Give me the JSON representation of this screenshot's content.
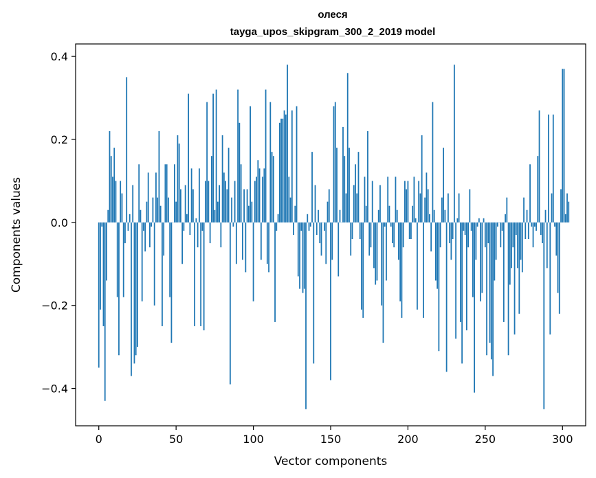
{
  "chart_data": {
    "type": "bar",
    "title": "олеся",
    "subtitle": "tayga_upos_skipgram_300_2_2019 model",
    "xlabel": "Vector components",
    "ylabel": "Components values",
    "xlim": [
      -15,
      315
    ],
    "ylim": [
      -0.49,
      0.43
    ],
    "x_ticks": [
      0,
      50,
      100,
      150,
      200,
      250,
      300
    ],
    "x_tick_labels": [
      "0",
      "50",
      "100",
      "150",
      "200",
      "250",
      "300"
    ],
    "y_ticks": [
      -0.4,
      -0.2,
      0.0,
      0.2,
      0.4
    ],
    "y_tick_labels": [
      "−0.4",
      "−0.2",
      "0.0",
      "0.2",
      "0.4"
    ],
    "bar_color": "#1f77b4",
    "values": [
      -0.35,
      -0.21,
      -0.01,
      -0.25,
      -0.43,
      -0.14,
      0.03,
      0.22,
      0.16,
      0.11,
      0.18,
      0.1,
      -0.18,
      -0.32,
      0.1,
      0.07,
      -0.18,
      -0.05,
      0.35,
      -0.02,
      0.02,
      -0.37,
      0.09,
      -0.34,
      -0.32,
      -0.3,
      0.14,
      0.03,
      -0.19,
      -0.02,
      -0.07,
      0.05,
      0.12,
      -0.06,
      -0.01,
      0.06,
      -0.2,
      0.12,
      0.06,
      0.22,
      0.04,
      -0.25,
      -0.08,
      0.14,
      0.14,
      0.06,
      -0.18,
      -0.29,
      0.0,
      0.14,
      0.05,
      0.21,
      0.19,
      0.08,
      -0.1,
      -0.02,
      0.09,
      0.02,
      0.31,
      -0.03,
      0.13,
      0.08,
      -0.25,
      0.01,
      -0.06,
      0.13,
      -0.25,
      -0.02,
      -0.26,
      0.1,
      0.29,
      0.1,
      -0.05,
      0.16,
      0.31,
      0.03,
      0.32,
      0.05,
      0.09,
      -0.06,
      0.21,
      0.12,
      0.1,
      0.08,
      0.18,
      -0.39,
      0.06,
      -0.01,
      0.1,
      -0.1,
      0.32,
      0.24,
      0.14,
      -0.09,
      0.08,
      -0.12,
      0.08,
      0.04,
      0.28,
      0.05,
      -0.19,
      0.1,
      0.11,
      0.15,
      0.13,
      -0.09,
      0.11,
      0.13,
      0.32,
      -0.1,
      -0.12,
      0.29,
      0.17,
      0.16,
      -0.24,
      -0.02,
      0.02,
      0.24,
      0.25,
      0.25,
      0.27,
      0.26,
      0.38,
      0.11,
      0.06,
      0.27,
      -0.03,
      0.04,
      0.28,
      -0.13,
      -0.16,
      -0.02,
      -0.17,
      -0.16,
      -0.45,
      0.02,
      -0.02,
      -0.01,
      0.17,
      -0.34,
      0.09,
      -0.03,
      0.03,
      -0.05,
      -0.08,
      0.0,
      -0.02,
      -0.1,
      0.05,
      0.08,
      -0.38,
      -0.09,
      0.28,
      0.29,
      0.18,
      -0.13,
      0.03,
      0.0,
      0.23,
      0.16,
      0.07,
      0.36,
      0.18,
      -0.08,
      -0.04,
      0.09,
      0.14,
      0.07,
      0.17,
      -0.04,
      -0.21,
      -0.23,
      0.11,
      0.04,
      0.22,
      -0.08,
      -0.06,
      0.1,
      -0.11,
      -0.15,
      -0.14,
      0.03,
      0.09,
      -0.2,
      -0.29,
      -0.01,
      -0.14,
      0.11,
      0.04,
      -0.01,
      -0.05,
      -0.06,
      0.11,
      0.03,
      -0.09,
      -0.19,
      -0.23,
      -0.06,
      0.1,
      0.08,
      0.1,
      -0.04,
      -0.04,
      0.04,
      0.11,
      0.01,
      -0.21,
      0.1,
      0.07,
      0.21,
      -0.23,
      0.06,
      0.12,
      0.08,
      0.02,
      -0.07,
      0.29,
      0.03,
      -0.14,
      -0.16,
      -0.31,
      -0.06,
      0.06,
      0.18,
      0.03,
      -0.36,
      0.07,
      -0.05,
      -0.09,
      -0.04,
      0.38,
      -0.28,
      0.01,
      0.07,
      -0.24,
      -0.34,
      -0.02,
      -0.03,
      -0.26,
      -0.06,
      0.08,
      -0.02,
      -0.18,
      -0.41,
      -0.09,
      -0.01,
      0.01,
      -0.19,
      -0.17,
      0.01,
      -0.06,
      -0.32,
      -0.05,
      -0.29,
      -0.33,
      -0.37,
      -0.14,
      -0.09,
      -0.01,
      0.0,
      -0.06,
      -0.02,
      -0.24,
      0.02,
      0.06,
      -0.32,
      -0.15,
      -0.11,
      -0.06,
      -0.27,
      -0.03,
      -0.11,
      -0.22,
      -0.09,
      -0.12,
      0.06,
      -0.04,
      0.03,
      -0.04,
      0.14,
      -0.01,
      -0.06,
      -0.01,
      -0.02,
      0.16,
      0.27,
      -0.03,
      -0.05,
      -0.45,
      0.03,
      -0.11,
      0.26,
      -0.27,
      0.07,
      0.26,
      -0.01,
      -0.08,
      -0.17,
      -0.22,
      0.08,
      0.37,
      0.37,
      0.02,
      0.07,
      0.05
    ]
  }
}
